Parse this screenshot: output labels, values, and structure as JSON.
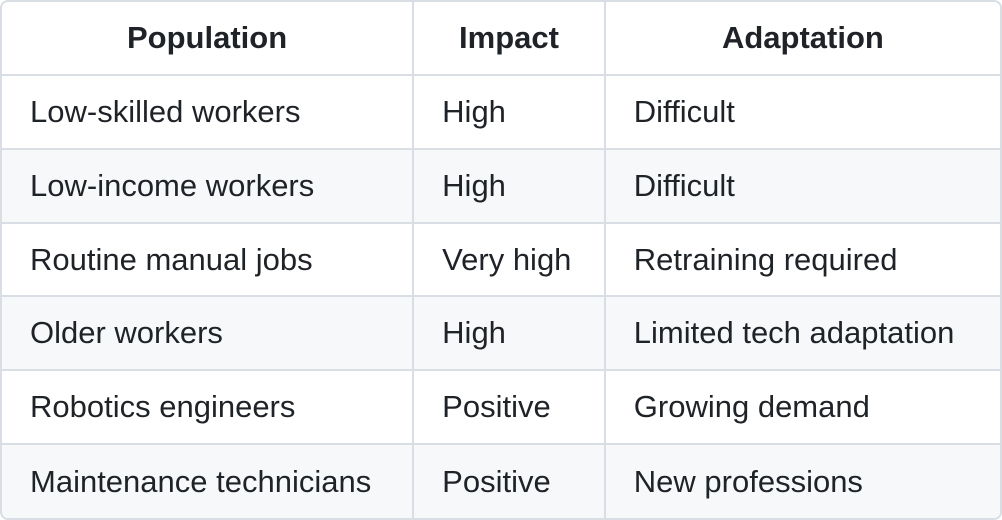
{
  "chart_data": {
    "type": "table",
    "title": "",
    "columns": [
      "Population",
      "Impact",
      "Adaptation"
    ],
    "rows": [
      [
        "Low-skilled workers",
        "High",
        "Difficult"
      ],
      [
        "Low-income workers",
        "High",
        "Difficult"
      ],
      [
        "Routine manual jobs",
        "Very high",
        "Retraining required"
      ],
      [
        "Older workers",
        "High",
        "Limited tech adaptation"
      ],
      [
        "Robotics engineers",
        "Positive",
        "Growing demand"
      ],
      [
        "Maintenance technicians",
        "Positive",
        "New professions"
      ]
    ],
    "layout": {
      "header_alignment": "center",
      "body_alignment": "left",
      "zebra_striping": true
    }
  },
  "colors": {
    "text": "#1f2328",
    "border": "#d8dee4",
    "row_bg": "#ffffff",
    "row_alt_bg": "#f6f8fa"
  }
}
